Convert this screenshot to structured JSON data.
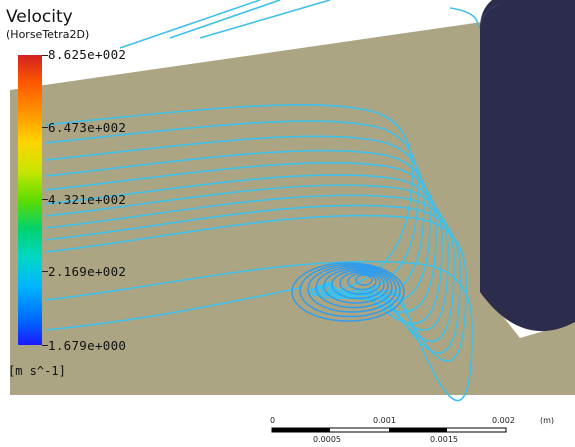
{
  "legend": {
    "title": "Velocity",
    "subtitle": "(HorseTetra2D)",
    "ticks": [
      "8.625e+002",
      "6.473e+002",
      "4.321e+002",
      "2.169e+002",
      "1.679e+000"
    ],
    "unit": "[m s^-1]"
  },
  "scale_bar": {
    "top_labels": [
      "0",
      "0.001",
      "0.002",
      "(m)"
    ],
    "bottom_labels": [
      "0.0005",
      "0.0015"
    ]
  },
  "colors": {
    "plane": "#aba584",
    "cylinder": "#2c2c4c",
    "streamline": "#3ec0ea",
    "vortex": "#2f9cec"
  }
}
